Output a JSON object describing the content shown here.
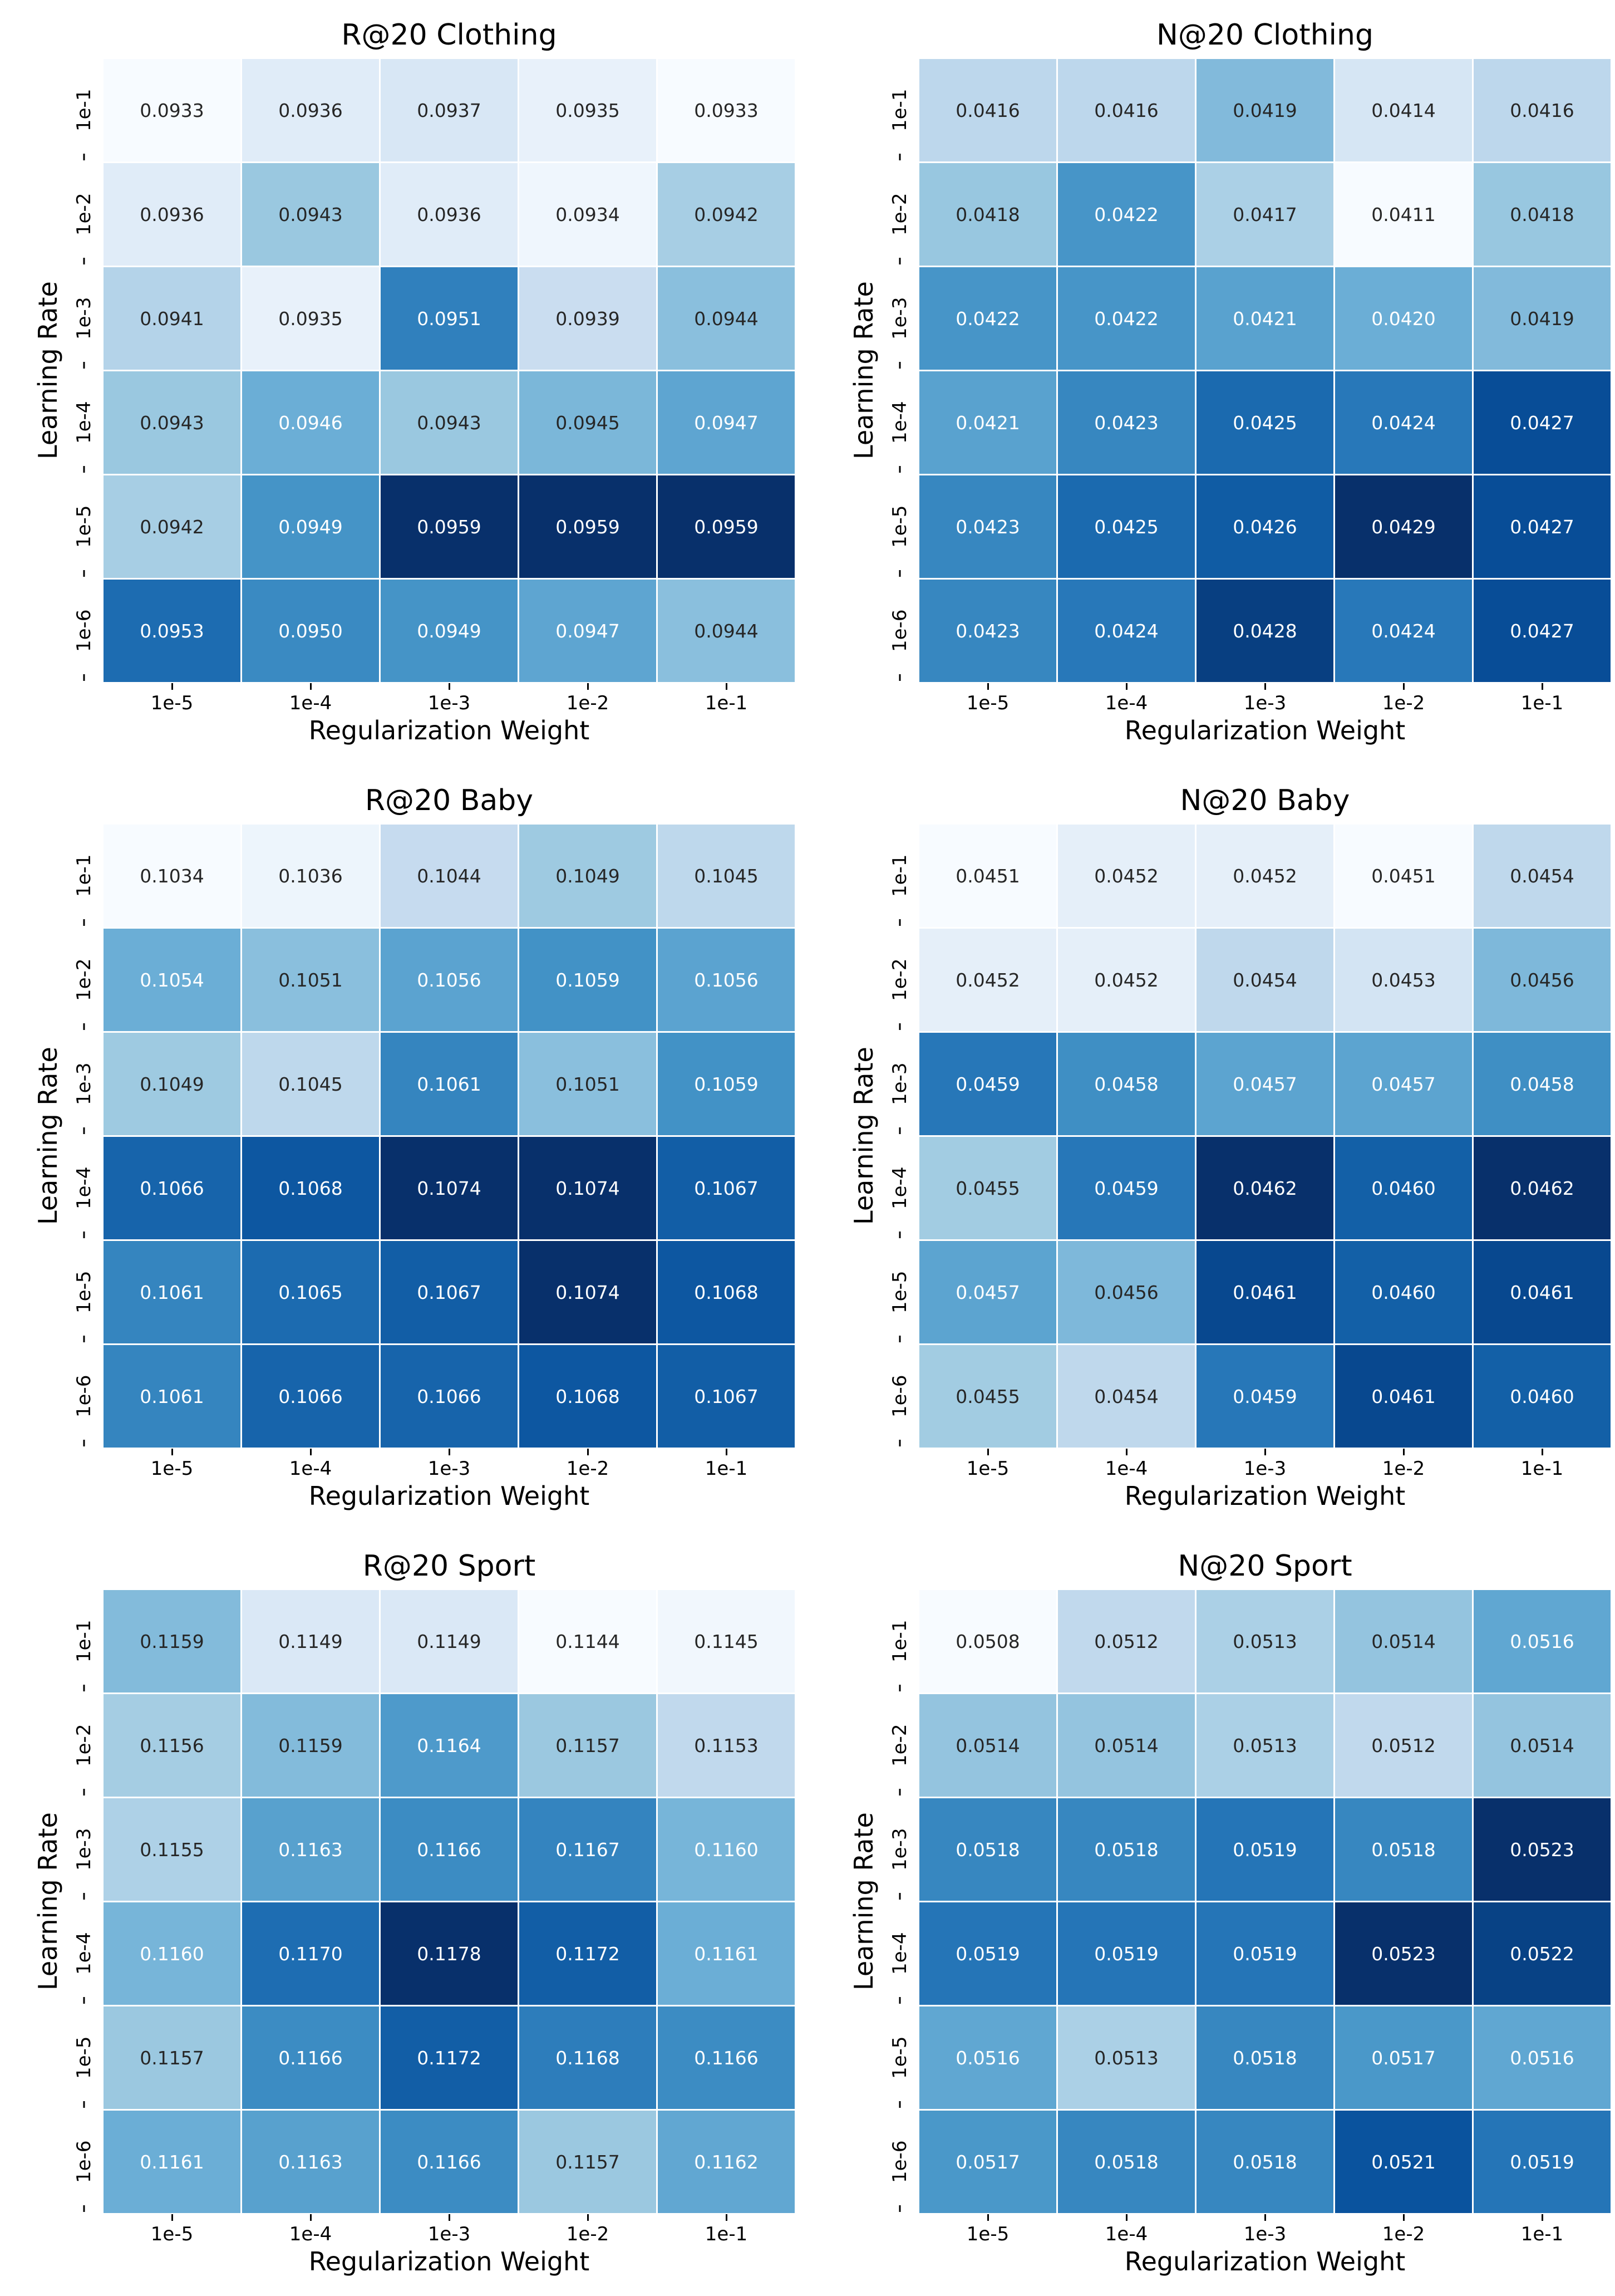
{
  "page": {
    "background": "#ffffff"
  },
  "colormap": {
    "name": "Blues",
    "anchors": [
      "#f7fbff",
      "#deebf7",
      "#c6dbef",
      "#9ecae1",
      "#6baed6",
      "#4292c6",
      "#2171b5",
      "#08519c",
      "#08306b"
    ],
    "annotation_dark": "#262626",
    "annotation_light": "#ffffff",
    "white_text_threshold": 0.47
  },
  "chart_data": [
    {
      "type": "heatmap",
      "title": "R@20 Clothing",
      "xlabel": "Regularization Weight",
      "ylabel": "Learning Rate",
      "x_ticks": [
        "1e-5",
        "1e-4",
        "1e-3",
        "1e-2",
        "1e-1"
      ],
      "y_ticks": [
        "1e-1",
        "1e-2",
        "1e-3",
        "1e-4",
        "1e-5",
        "1e-6"
      ],
      "values": [
        [
          "0.0933",
          "0.0936",
          "0.0937",
          "0.0935",
          "0.0933"
        ],
        [
          "0.0936",
          "0.0943",
          "0.0936",
          "0.0934",
          "0.0942"
        ],
        [
          "0.0941",
          "0.0935",
          "0.0951",
          "0.0939",
          "0.0944"
        ],
        [
          "0.0943",
          "0.0946",
          "0.0943",
          "0.0945",
          "0.0947"
        ],
        [
          "0.0942",
          "0.0949",
          "0.0959",
          "0.0959",
          "0.0959"
        ],
        [
          "0.0953",
          "0.0950",
          "0.0949",
          "0.0947",
          "0.0944"
        ]
      ]
    },
    {
      "type": "heatmap",
      "title": "N@20 Clothing",
      "xlabel": "Regularization Weight",
      "ylabel": "Learning Rate",
      "x_ticks": [
        "1e-5",
        "1e-4",
        "1e-3",
        "1e-2",
        "1e-1"
      ],
      "y_ticks": [
        "1e-1",
        "1e-2",
        "1e-3",
        "1e-4",
        "1e-5",
        "1e-6"
      ],
      "values": [
        [
          "0.0416",
          "0.0416",
          "0.0419",
          "0.0414",
          "0.0416"
        ],
        [
          "0.0418",
          "0.0422",
          "0.0417",
          "0.0411",
          "0.0418"
        ],
        [
          "0.0422",
          "0.0422",
          "0.0421",
          "0.0420",
          "0.0419"
        ],
        [
          "0.0421",
          "0.0423",
          "0.0425",
          "0.0424",
          "0.0427"
        ],
        [
          "0.0423",
          "0.0425",
          "0.0426",
          "0.0429",
          "0.0427"
        ],
        [
          "0.0423",
          "0.0424",
          "0.0428",
          "0.0424",
          "0.0427"
        ]
      ]
    },
    {
      "type": "heatmap",
      "title": "R@20 Baby",
      "xlabel": "Regularization Weight",
      "ylabel": "Learning Rate",
      "x_ticks": [
        "1e-5",
        "1e-4",
        "1e-3",
        "1e-2",
        "1e-1"
      ],
      "y_ticks": [
        "1e-1",
        "1e-2",
        "1e-3",
        "1e-4",
        "1e-5",
        "1e-6"
      ],
      "values": [
        [
          "0.1034",
          "0.1036",
          "0.1044",
          "0.1049",
          "0.1045"
        ],
        [
          "0.1054",
          "0.1051",
          "0.1056",
          "0.1059",
          "0.1056"
        ],
        [
          "0.1049",
          "0.1045",
          "0.1061",
          "0.1051",
          "0.1059"
        ],
        [
          "0.1066",
          "0.1068",
          "0.1074",
          "0.1074",
          "0.1067"
        ],
        [
          "0.1061",
          "0.1065",
          "0.1067",
          "0.1074",
          "0.1068"
        ],
        [
          "0.1061",
          "0.1066",
          "0.1066",
          "0.1068",
          "0.1067"
        ]
      ]
    },
    {
      "type": "heatmap",
      "title": "N@20 Baby",
      "xlabel": "Regularization Weight",
      "ylabel": "Learning Rate",
      "x_ticks": [
        "1e-5",
        "1e-4",
        "1e-3",
        "1e-2",
        "1e-1"
      ],
      "y_ticks": [
        "1e-1",
        "1e-2",
        "1e-3",
        "1e-4",
        "1e-5",
        "1e-6"
      ],
      "values": [
        [
          "0.0451",
          "0.0452",
          "0.0452",
          "0.0451",
          "0.0454"
        ],
        [
          "0.0452",
          "0.0452",
          "0.0454",
          "0.0453",
          "0.0456"
        ],
        [
          "0.0459",
          "0.0458",
          "0.0457",
          "0.0457",
          "0.0458"
        ],
        [
          "0.0455",
          "0.0459",
          "0.0462",
          "0.0460",
          "0.0462"
        ],
        [
          "0.0457",
          "0.0456",
          "0.0461",
          "0.0460",
          "0.0461"
        ],
        [
          "0.0455",
          "0.0454",
          "0.0459",
          "0.0461",
          "0.0460"
        ]
      ]
    },
    {
      "type": "heatmap",
      "title": "R@20 Sport",
      "xlabel": "Regularization Weight",
      "ylabel": "Learning Rate",
      "x_ticks": [
        "1e-5",
        "1e-4",
        "1e-3",
        "1e-2",
        "1e-1"
      ],
      "y_ticks": [
        "1e-1",
        "1e-2",
        "1e-3",
        "1e-4",
        "1e-5",
        "1e-6"
      ],
      "values": [
        [
          "0.1159",
          "0.1149",
          "0.1149",
          "0.1144",
          "0.1145"
        ],
        [
          "0.1156",
          "0.1159",
          "0.1164",
          "0.1157",
          "0.1153"
        ],
        [
          "0.1155",
          "0.1163",
          "0.1166",
          "0.1167",
          "0.1160"
        ],
        [
          "0.1160",
          "0.1170",
          "0.1178",
          "0.1172",
          "0.1161"
        ],
        [
          "0.1157",
          "0.1166",
          "0.1172",
          "0.1168",
          "0.1166"
        ],
        [
          "0.1161",
          "0.1163",
          "0.1166",
          "0.1157",
          "0.1162"
        ]
      ]
    },
    {
      "type": "heatmap",
      "title": "N@20 Sport",
      "xlabel": "Regularization Weight",
      "ylabel": "Learning Rate",
      "x_ticks": [
        "1e-5",
        "1e-4",
        "1e-3",
        "1e-2",
        "1e-1"
      ],
      "y_ticks": [
        "1e-1",
        "1e-2",
        "1e-3",
        "1e-4",
        "1e-5",
        "1e-6"
      ],
      "values": [
        [
          "0.0508",
          "0.0512",
          "0.0513",
          "0.0514",
          "0.0516"
        ],
        [
          "0.0514",
          "0.0514",
          "0.0513",
          "0.0512",
          "0.0514"
        ],
        [
          "0.0518",
          "0.0518",
          "0.0519",
          "0.0518",
          "0.0523"
        ],
        [
          "0.0519",
          "0.0519",
          "0.0519",
          "0.0523",
          "0.0522"
        ],
        [
          "0.0516",
          "0.0513",
          "0.0518",
          "0.0517",
          "0.0516"
        ],
        [
          "0.0517",
          "0.0518",
          "0.0518",
          "0.0521",
          "0.0519"
        ]
      ]
    }
  ]
}
